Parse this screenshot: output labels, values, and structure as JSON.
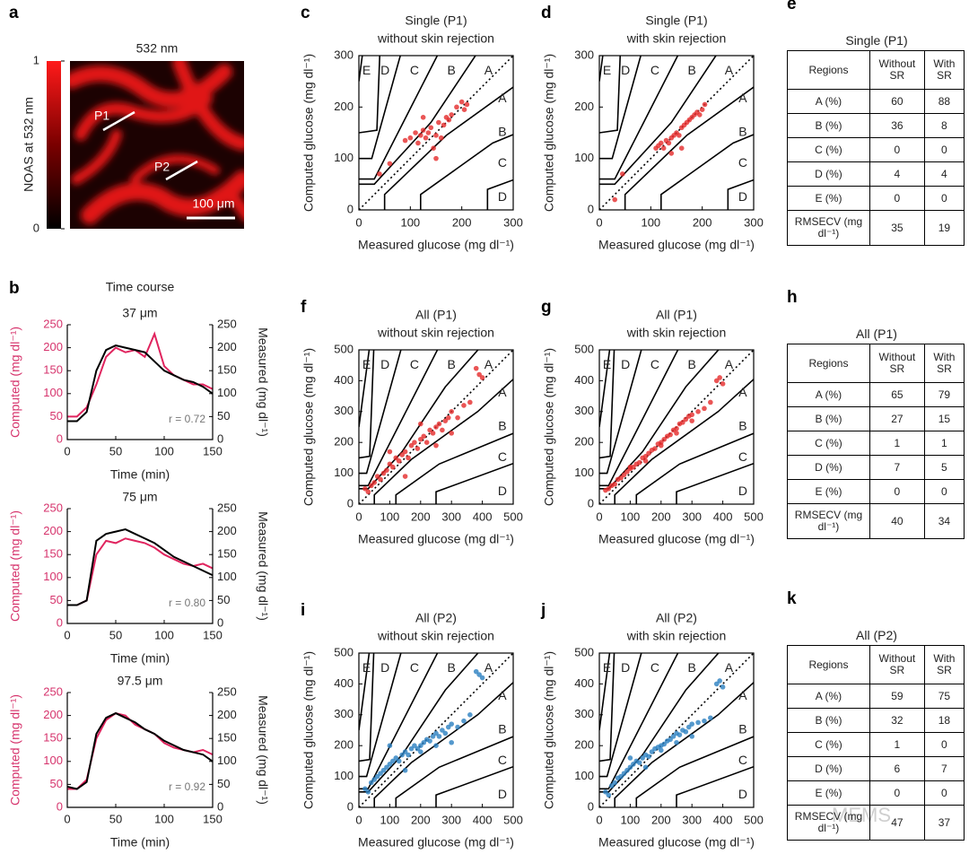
{
  "image_panel": {
    "label": "a",
    "title": "532 nm",
    "colorbar": {
      "label": "NOAS at 532 nm",
      "lim": [
        0,
        1
      ],
      "ticks": [
        0,
        1
      ]
    },
    "annotations": [
      "P1",
      "P2",
      "100 μm"
    ]
  },
  "time_course": {
    "label": "b",
    "title": "Time course"
  },
  "chart_data": [
    {
      "type": "line",
      "title": "37 μm",
      "xlabel": "Time (min)",
      "ylabel": "Computed (mg dl⁻¹)",
      "y2label": "Measured (mg dl⁻¹)",
      "annotation": "r = 0.72",
      "x": [
        0,
        10,
        20,
        30,
        40,
        50,
        60,
        70,
        80,
        90,
        100,
        110,
        120,
        130,
        140,
        150
      ],
      "xlim": [
        0,
        150
      ],
      "xticks": [
        0,
        50,
        100,
        150
      ],
      "ylim": [
        0,
        250
      ],
      "yticks": [
        0,
        50,
        100,
        150,
        200,
        250
      ],
      "y2lim": [
        0,
        250
      ],
      "y2ticks": [
        0,
        50,
        100,
        150,
        200,
        250
      ],
      "series": [
        {
          "color": "#e0245e",
          "values": [
            50,
            50,
            70,
            120,
            180,
            200,
            190,
            195,
            180,
            230,
            160,
            140,
            130,
            120,
            120,
            110
          ]
        },
        {
          "color": "#000000",
          "axis": "y2",
          "values": [
            40,
            40,
            60,
            150,
            195,
            205,
            200,
            195,
            190,
            170,
            150,
            140,
            130,
            125,
            115,
            100
          ]
        }
      ]
    },
    {
      "type": "line",
      "title": "75 μm",
      "xlabel": "Time (min)",
      "ylabel": "Computed (mg dl⁻¹)",
      "y2label": "Measured (mg dl⁻¹)",
      "annotation": "r = 0.80",
      "x": [
        0,
        10,
        20,
        30,
        40,
        50,
        60,
        70,
        80,
        90,
        100,
        110,
        120,
        130,
        140,
        150
      ],
      "xlim": [
        0,
        150
      ],
      "xticks": [
        0,
        50,
        100,
        150
      ],
      "ylim": [
        0,
        250
      ],
      "yticks": [
        0,
        50,
        100,
        150,
        200,
        250
      ],
      "y2lim": [
        0,
        250
      ],
      "y2ticks": [
        0,
        50,
        100,
        150,
        200,
        250
      ],
      "series": [
        {
          "color": "#e0245e",
          "values": [
            40,
            40,
            50,
            150,
            180,
            175,
            185,
            180,
            175,
            165,
            150,
            140,
            130,
            125,
            130,
            120
          ]
        },
        {
          "color": "#000000",
          "axis": "y2",
          "values": [
            40,
            40,
            50,
            180,
            195,
            200,
            205,
            195,
            185,
            175,
            160,
            145,
            135,
            125,
            115,
            105
          ]
        }
      ]
    },
    {
      "type": "line",
      "title": "97.5 μm",
      "xlabel": "Time (min)",
      "ylabel": "Computed (mg dl⁻¹)",
      "y2label": "Measured (mg dl⁻¹)",
      "annotation": "r = 0.92",
      "x": [
        0,
        10,
        20,
        30,
        40,
        50,
        60,
        70,
        80,
        90,
        100,
        110,
        120,
        130,
        140,
        150
      ],
      "xlim": [
        0,
        150
      ],
      "xticks": [
        0,
        50,
        100,
        150
      ],
      "ylim": [
        0,
        250
      ],
      "yticks": [
        0,
        50,
        100,
        150,
        200,
        250
      ],
      "y2lim": [
        0,
        250
      ],
      "y2ticks": [
        0,
        50,
        100,
        150,
        200,
        250
      ],
      "series": [
        {
          "color": "#e0245e",
          "values": [
            40,
            40,
            60,
            150,
            190,
            205,
            200,
            180,
            170,
            160,
            140,
            130,
            125,
            120,
            125,
            115
          ]
        },
        {
          "color": "#000000",
          "axis": "y2",
          "values": [
            45,
            40,
            55,
            160,
            195,
            205,
            195,
            185,
            170,
            160,
            145,
            135,
            125,
            120,
            115,
            100
          ]
        }
      ]
    },
    {
      "type": "scatter",
      "label": "c",
      "title": "Single (P1)",
      "subtitle": "without skin rejection",
      "xlabel": "Measured glucose (mg dl⁻¹)",
      "ylabel": "Computed glucose (mg dl⁻¹)",
      "zones": [
        "A",
        "B",
        "C",
        "D",
        "E"
      ],
      "xlim": [
        0,
        300
      ],
      "xticks": [
        0,
        100,
        200,
        300
      ],
      "ylim": [
        0,
        300
      ],
      "yticks": [
        0,
        100,
        200,
        300
      ],
      "series": [
        {
          "color": "#e52b2b",
          "x": [
            40,
            60,
            90,
            100,
            110,
            115,
            120,
            125,
            130,
            135,
            140,
            145,
            150,
            155,
            160,
            165,
            170,
            175,
            180,
            190,
            200,
            205,
            210,
            150,
            125
          ],
          "values": [
            70,
            90,
            135,
            140,
            150,
            130,
            145,
            155,
            140,
            150,
            160,
            120,
            145,
            170,
            140,
            165,
            180,
            175,
            185,
            200,
            210,
            195,
            205,
            100,
            180
          ]
        }
      ]
    },
    {
      "type": "scatter",
      "label": "d",
      "title": "Single (P1)",
      "subtitle": "with skin rejection",
      "xlabel": "Measured glucose (mg dl⁻¹)",
      "ylabel": "Computed glucose (mg dl⁻¹)",
      "zones": [
        "A",
        "B",
        "C",
        "D",
        "E"
      ],
      "xlim": [
        0,
        300
      ],
      "xticks": [
        0,
        100,
        200,
        300
      ],
      "ylim": [
        0,
        300
      ],
      "yticks": [
        0,
        100,
        200,
        300
      ],
      "series": [
        {
          "color": "#e52b2b",
          "x": [
            30,
            45,
            110,
            115,
            120,
            125,
            130,
            135,
            140,
            145,
            150,
            155,
            160,
            165,
            170,
            175,
            180,
            185,
            190,
            195,
            200,
            205,
            160,
            140
          ],
          "values": [
            20,
            70,
            120,
            125,
            130,
            120,
            135,
            130,
            140,
            145,
            150,
            145,
            160,
            165,
            170,
            175,
            180,
            185,
            190,
            185,
            195,
            205,
            120,
            110
          ]
        }
      ]
    },
    {
      "type": "scatter",
      "label": "f",
      "title": "All (P1)",
      "subtitle": "without skin rejection",
      "xlabel": "Measured glucose (mg dl⁻¹)",
      "ylabel": "Computed glucose (mg dl⁻¹)",
      "zones": [
        "A",
        "B",
        "C",
        "D",
        "E"
      ],
      "xlim": [
        0,
        500
      ],
      "xticks": [
        0,
        100,
        200,
        300,
        400,
        500
      ],
      "ylim": [
        0,
        500
      ],
      "yticks": [
        0,
        100,
        200,
        300,
        400,
        500
      ],
      "series": [
        {
          "color": "#e52b2b",
          "x": [
            20,
            30,
            40,
            50,
            60,
            70,
            80,
            90,
            100,
            110,
            120,
            130,
            140,
            150,
            160,
            170,
            180,
            190,
            200,
            210,
            220,
            230,
            240,
            250,
            260,
            270,
            280,
            290,
            300,
            320,
            340,
            360,
            380,
            390,
            400,
            100,
            150,
            200,
            250,
            300
          ],
          "values": [
            50,
            40,
            60,
            70,
            90,
            80,
            100,
            110,
            130,
            120,
            150,
            140,
            160,
            170,
            150,
            190,
            200,
            180,
            210,
            220,
            200,
            240,
            230,
            250,
            260,
            240,
            270,
            280,
            300,
            280,
            320,
            330,
            440,
            420,
            410,
            170,
            90,
            260,
            190,
            230
          ]
        }
      ]
    },
    {
      "type": "scatter",
      "label": "g",
      "title": "All (P1)",
      "subtitle": "with skin rejection",
      "xlabel": "Measured glucose (mg dl⁻¹)",
      "ylabel": "Computed glucose (mg dl⁻¹)",
      "zones": [
        "A",
        "B",
        "C",
        "D",
        "E"
      ],
      "xlim": [
        0,
        500
      ],
      "xticks": [
        0,
        100,
        200,
        300,
        400,
        500
      ],
      "ylim": [
        0,
        500
      ],
      "yticks": [
        0,
        100,
        200,
        300,
        400,
        500
      ],
      "series": [
        {
          "color": "#e52b2b",
          "x": [
            20,
            30,
            40,
            50,
            60,
            70,
            80,
            90,
            100,
            110,
            120,
            130,
            140,
            150,
            160,
            170,
            180,
            190,
            200,
            210,
            220,
            230,
            240,
            250,
            260,
            270,
            280,
            290,
            300,
            320,
            340,
            360,
            380,
            390,
            400,
            100,
            150,
            200,
            250,
            300
          ],
          "values": [
            45,
            50,
            60,
            65,
            80,
            85,
            95,
            105,
            115,
            120,
            130,
            135,
            150,
            155,
            165,
            175,
            180,
            195,
            200,
            210,
            220,
            225,
            240,
            245,
            260,
            265,
            275,
            285,
            290,
            300,
            310,
            330,
            400,
            410,
            390,
            120,
            140,
            190,
            230,
            270
          ]
        }
      ]
    },
    {
      "type": "scatter",
      "label": "i",
      "title": "All (P2)",
      "subtitle": "without skin rejection",
      "xlabel": "Measured glucose (mg dl⁻¹)",
      "ylabel": "Computed glucose (mg dl⁻¹)",
      "zones": [
        "A",
        "B",
        "C",
        "D",
        "E"
      ],
      "xlim": [
        0,
        500
      ],
      "xticks": [
        0,
        100,
        200,
        300,
        400,
        500
      ],
      "ylim": [
        0,
        500
      ],
      "yticks": [
        0,
        100,
        200,
        300,
        400,
        500
      ],
      "series": [
        {
          "color": "#2a7fc0",
          "x": [
            20,
            30,
            40,
            50,
            60,
            70,
            80,
            90,
            100,
            110,
            120,
            130,
            140,
            150,
            160,
            170,
            180,
            190,
            200,
            210,
            220,
            230,
            240,
            250,
            260,
            270,
            280,
            290,
            300,
            320,
            340,
            360,
            380,
            390,
            400,
            100,
            150,
            200,
            250,
            300
          ],
          "values": [
            60,
            50,
            80,
            90,
            100,
            110,
            120,
            130,
            140,
            150,
            160,
            150,
            170,
            180,
            170,
            190,
            200,
            190,
            200,
            210,
            220,
            215,
            230,
            240,
            230,
            250,
            240,
            260,
            270,
            260,
            280,
            300,
            440,
            430,
            420,
            200,
            120,
            180,
            200,
            210
          ]
        }
      ]
    },
    {
      "type": "scatter",
      "label": "j",
      "title": "All (P2)",
      "subtitle": "with skin rejection",
      "xlabel": "Measured glucose (mg dl⁻¹)",
      "ylabel": "Computed glucose (mg dl⁻¹)",
      "zones": [
        "A",
        "B",
        "C",
        "D",
        "E"
      ],
      "xlim": [
        0,
        500
      ],
      "xticks": [
        0,
        100,
        200,
        300,
        400,
        500
      ],
      "ylim": [
        0,
        500
      ],
      "yticks": [
        0,
        100,
        200,
        300,
        400,
        500
      ],
      "series": [
        {
          "color": "#2a7fc0",
          "x": [
            20,
            30,
            40,
            50,
            60,
            70,
            80,
            90,
            100,
            110,
            120,
            130,
            140,
            150,
            160,
            170,
            180,
            190,
            200,
            210,
            220,
            230,
            240,
            250,
            260,
            270,
            280,
            290,
            300,
            320,
            340,
            360,
            380,
            390,
            400,
            100,
            150,
            200,
            250,
            300
          ],
          "values": [
            50,
            40,
            70,
            80,
            95,
            100,
            110,
            120,
            130,
            140,
            150,
            145,
            160,
            170,
            165,
            180,
            190,
            195,
            200,
            205,
            215,
            220,
            230,
            240,
            235,
            250,
            245,
            260,
            270,
            275,
            280,
            290,
            400,
            410,
            390,
            160,
            130,
            185,
            210,
            230
          ]
        }
      ]
    }
  ],
  "tables": [
    {
      "label": "e",
      "title": "Single (P1)",
      "header": [
        "Regions",
        "Without SR",
        "With SR"
      ],
      "rows": [
        [
          "A (%)",
          60,
          88
        ],
        [
          "B (%)",
          36,
          8
        ],
        [
          "C (%)",
          0,
          0
        ],
        [
          "D (%)",
          4,
          4
        ],
        [
          "E (%)",
          0,
          0
        ],
        [
          "RMSECV (mg dl⁻¹)",
          35,
          19
        ]
      ]
    },
    {
      "label": "h",
      "title": "All (P1)",
      "header": [
        "Regions",
        "Without SR",
        "With SR"
      ],
      "rows": [
        [
          "A (%)",
          65,
          79
        ],
        [
          "B (%)",
          27,
          15
        ],
        [
          "C (%)",
          1,
          1
        ],
        [
          "D (%)",
          7,
          5
        ],
        [
          "E (%)",
          0,
          0
        ],
        [
          "RMSECV (mg dl⁻¹)",
          40,
          34
        ]
      ]
    },
    {
      "label": "k",
      "title": "All (P2)",
      "header": [
        "Regions",
        "Without SR",
        "With SR"
      ],
      "rows": [
        [
          "A (%)",
          59,
          75
        ],
        [
          "B (%)",
          32,
          18
        ],
        [
          "C (%)",
          1,
          0
        ],
        [
          "D (%)",
          6,
          7
        ],
        [
          "E (%)",
          0,
          0
        ],
        [
          "RMSECV (mg dl⁻¹)",
          47,
          37
        ]
      ]
    }
  ],
  "watermark": "MEMS"
}
